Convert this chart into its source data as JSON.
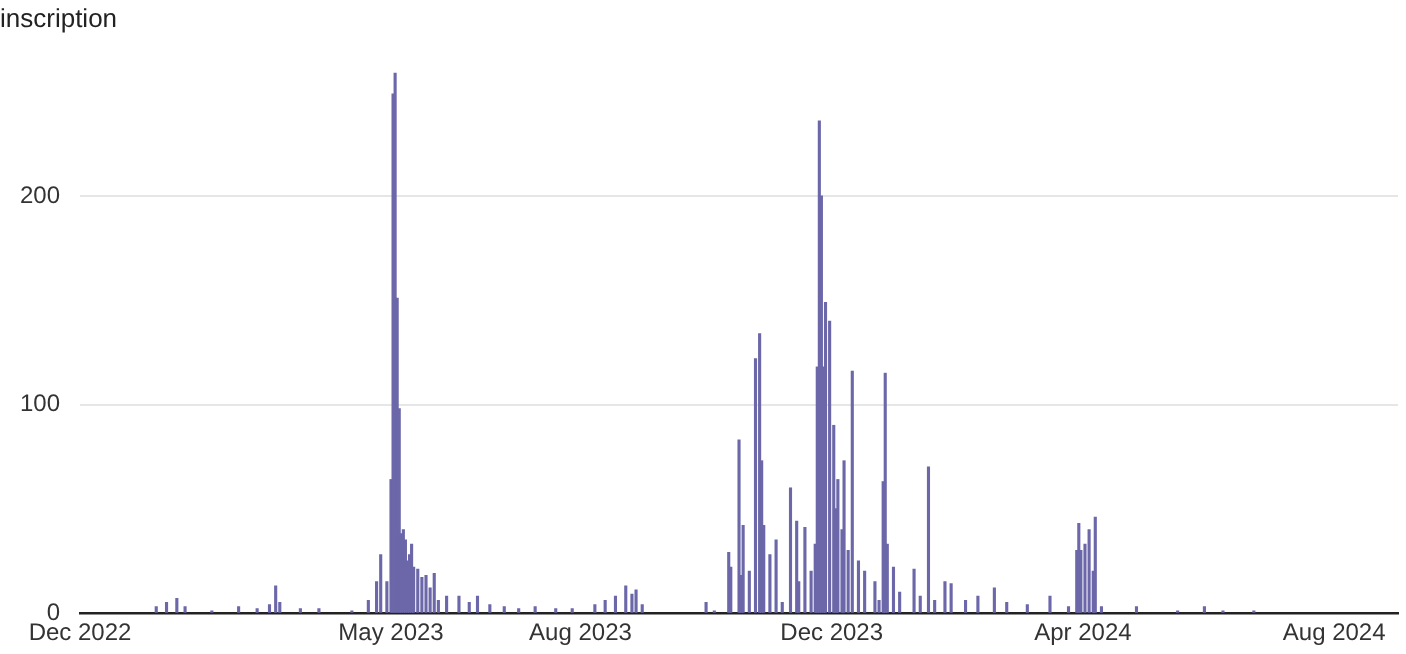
{
  "chart_data": {
    "type": "bar",
    "title": "inscription",
    "color": "#6b67a8",
    "x": [
      "2023-01-07",
      "2023-01-12",
      "2023-01-17",
      "2023-01-21",
      "2023-02-03",
      "2023-02-16",
      "2023-02-25",
      "2023-03-03",
      "2023-03-06",
      "2023-03-08",
      "2023-03-18",
      "2023-03-27",
      "2023-04-12",
      "2023-04-20",
      "2023-04-24",
      "2023-04-26",
      "2023-04-29",
      "2023-05-01",
      "2023-05-02",
      "2023-05-03",
      "2023-05-04",
      "2023-05-05",
      "2023-05-06",
      "2023-05-07",
      "2023-05-08",
      "2023-05-09",
      "2023-05-10",
      "2023-05-11",
      "2023-05-12",
      "2023-05-14",
      "2023-05-16",
      "2023-05-18",
      "2023-05-20",
      "2023-05-22",
      "2023-05-24",
      "2023-05-28",
      "2023-06-03",
      "2023-06-08",
      "2023-06-12",
      "2023-06-18",
      "2023-06-25",
      "2023-07-02",
      "2023-07-10",
      "2023-07-20",
      "2023-07-28",
      "2023-08-08",
      "2023-08-13",
      "2023-08-18",
      "2023-08-23",
      "2023-08-26",
      "2023-08-28",
      "2023-08-31",
      "2023-10-01",
      "2023-10-05",
      "2023-10-12",
      "2023-10-13",
      "2023-10-17",
      "2023-10-18",
      "2023-10-19",
      "2023-10-22",
      "2023-10-25",
      "2023-10-27",
      "2023-10-28",
      "2023-10-29",
      "2023-11-01",
      "2023-11-04",
      "2023-11-07",
      "2023-11-11",
      "2023-11-14",
      "2023-11-15",
      "2023-11-18",
      "2023-11-21",
      "2023-11-23",
      "2023-11-24",
      "2023-11-25",
      "2023-11-26",
      "2023-11-27",
      "2023-11-28",
      "2023-11-30",
      "2023-12-02",
      "2023-12-03",
      "2023-12-04",
      "2023-12-06",
      "2023-12-07",
      "2023-12-09",
      "2023-12-11",
      "2023-12-14",
      "2023-12-17",
      "2023-12-22",
      "2023-12-24",
      "2023-12-26",
      "2023-12-27",
      "2023-12-28",
      "2023-12-31",
      "2024-01-03",
      "2024-01-10",
      "2024-01-13",
      "2024-01-17",
      "2024-01-20",
      "2024-01-25",
      "2024-01-28",
      "2024-02-04",
      "2024-02-10",
      "2024-02-18",
      "2024-02-24",
      "2024-03-05",
      "2024-03-16",
      "2024-03-25",
      "2024-03-29",
      "2024-03-30",
      "2024-03-31",
      "2024-04-02",
      "2024-04-04",
      "2024-04-06",
      "2024-04-07",
      "2024-04-10",
      "2024-04-27",
      "2024-05-17",
      "2024-05-30",
      "2024-06-08",
      "2024-06-23"
    ],
    "values": [
      3,
      5,
      7,
      3,
      1,
      3,
      2,
      4,
      13,
      5,
      2,
      2,
      1,
      6,
      15,
      28,
      15,
      64,
      249,
      259,
      151,
      98,
      38,
      40,
      35,
      25,
      28,
      33,
      22,
      21,
      17,
      18,
      12,
      19,
      6,
      8,
      8,
      5,
      8,
      4,
      3,
      2,
      3,
      2,
      2,
      4,
      6,
      8,
      13,
      9,
      11,
      4,
      5,
      1,
      29,
      22,
      83,
      18,
      42,
      20,
      122,
      134,
      73,
      42,
      28,
      35,
      5,
      60,
      44,
      15,
      41,
      20,
      33,
      118,
      236,
      200,
      118,
      149,
      140,
      90,
      50,
      64,
      40,
      73,
      30,
      116,
      25,
      20,
      15,
      6,
      63,
      115,
      33,
      22,
      10,
      21,
      8,
      70,
      6,
      15,
      14,
      6,
      8,
      12,
      5,
      4,
      8,
      3,
      30,
      43,
      30,
      33,
      40,
      20,
      46,
      3,
      3,
      1,
      3,
      1,
      1
    ],
    "xlim": [
      "2022-12-01",
      "2024-09-01"
    ],
    "xticks": [
      {
        "value": "2022-12-01",
        "label": "Dec 2022"
      },
      {
        "value": "2023-05-01",
        "label": "May 2023"
      },
      {
        "value": "2023-08-01",
        "label": "Aug 2023"
      },
      {
        "value": "2023-12-01",
        "label": "Dec 2023"
      },
      {
        "value": "2024-04-01",
        "label": "Apr 2024"
      },
      {
        "value": "2024-08-01",
        "label": "Aug 2024"
      }
    ],
    "ylim": [
      0,
      260
    ],
    "yticks": [
      0,
      100,
      200
    ],
    "grid": "y",
    "legend": false
  }
}
